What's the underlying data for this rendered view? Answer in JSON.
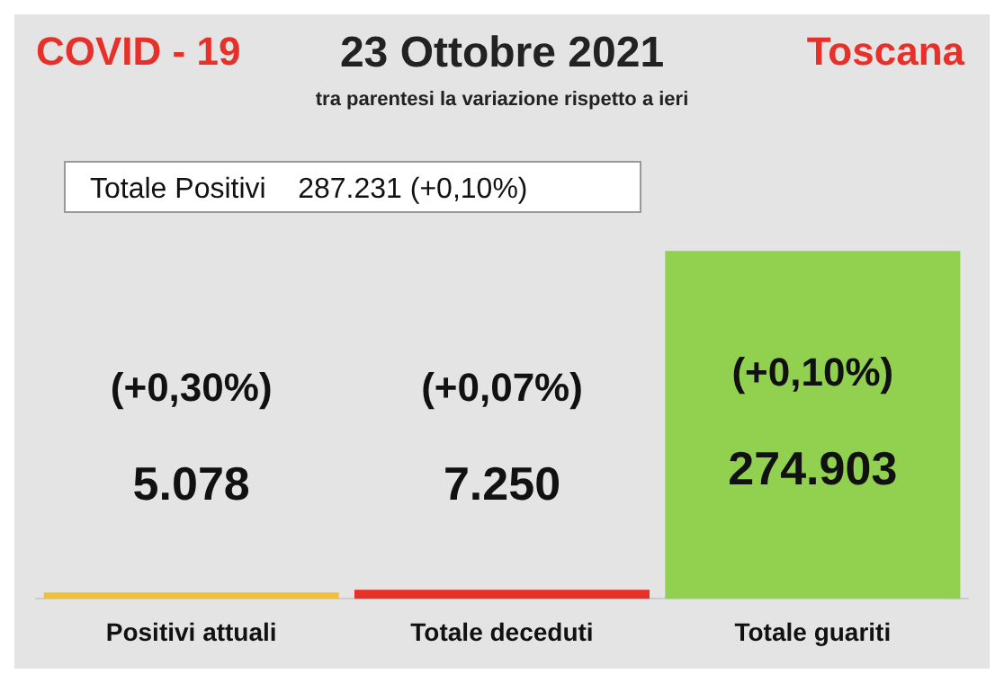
{
  "chart_data": {
    "type": "bar",
    "title": "23 Ottobre 2021",
    "subtitle": "tra parentesi la variazione rispetto a ieri",
    "categories": [
      "Positivi attuali",
      "Totale deceduti",
      "Totale guariti"
    ],
    "values": [
      5078,
      7250,
      274903
    ],
    "colors": [
      "#f2c037",
      "#e8302a",
      "#92d050"
    ],
    "value_labels": [
      "5.078",
      "7.250",
      "274.903"
    ],
    "annotations": [
      "COVID - 19",
      "Toscana",
      "Totale Positivi    287.231 (+0,10%)",
      "(+0,30%)",
      "(+0,07%)",
      "(+0,10%)"
    ],
    "tick_labels": "x",
    "legend": false,
    "grid": false
  }
}
